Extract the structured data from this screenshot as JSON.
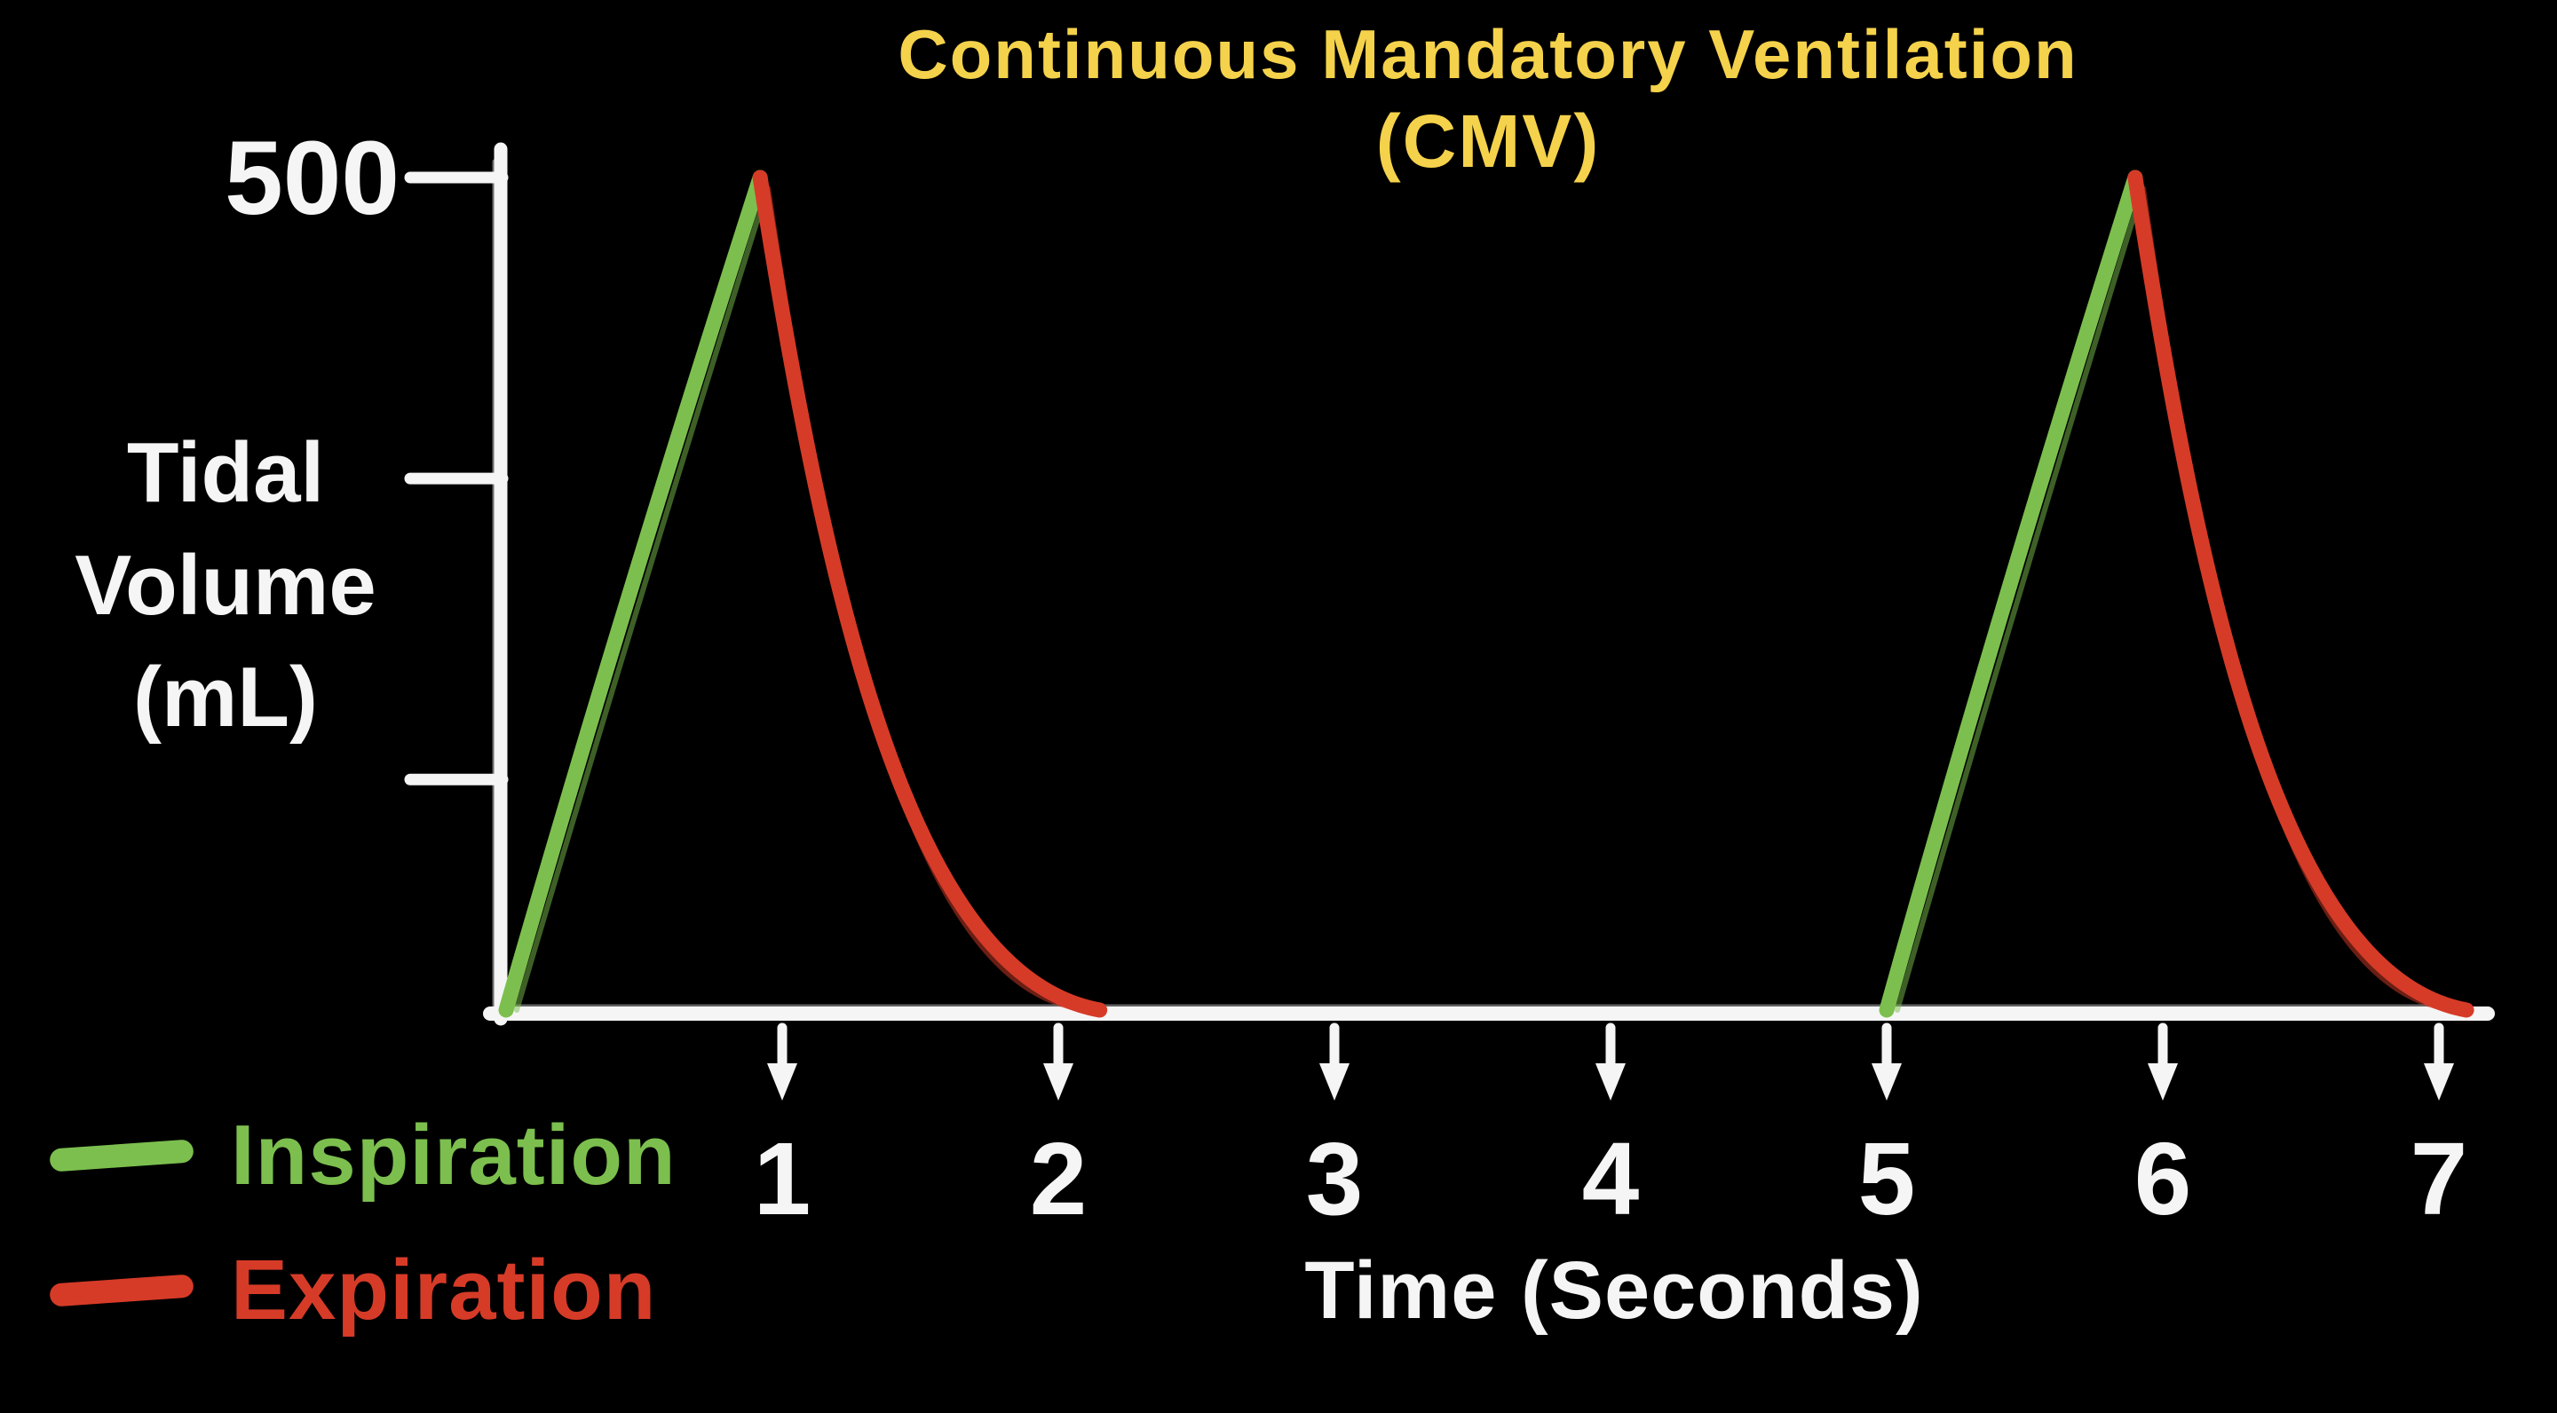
{
  "title": {
    "line1": "Continuous Mandatory Ventilation",
    "line2": "(CMV)"
  },
  "y_axis": {
    "label_lines": [
      "Tidal",
      "Volume",
      "(mL)"
    ],
    "max_label": "500"
  },
  "x_axis": {
    "label": "Time (Seconds)"
  },
  "legend": [
    {
      "label": "Inspiration",
      "color": "#7cbf4e"
    },
    {
      "label": "Expiration",
      "color": "#d63b28"
    }
  ],
  "colors": {
    "background": "#000000",
    "axis": "#f5f5f5",
    "text": "#f5f5f5",
    "title": "#f5d24b",
    "inspiration": "#7cbf4e",
    "expiration": "#d63b28"
  },
  "chart_data": {
    "type": "line",
    "title": "Continuous Mandatory Ventilation (CMV)",
    "xlabel": "Time (Seconds)",
    "ylabel": "Tidal Volume (mL)",
    "xlim": [
      0,
      7.3
    ],
    "ylim": [
      0,
      500
    ],
    "x_ticks": [
      1,
      2,
      3,
      4,
      5,
      6,
      7
    ],
    "y_ticks": [
      500,
      320,
      140
    ],
    "y_tick_labels": [
      {
        "value": 500,
        "label": "500"
      }
    ],
    "grid": false,
    "legend_position": "bottom-left",
    "peak_tidal_volume_ml": 500,
    "breaths": [
      {
        "inspiration_start_s": 0,
        "peak_s": 0.92,
        "expiration_end_s": 2.15,
        "peak_ml": 500
      },
      {
        "inspiration_start_s": 5.0,
        "peak_s": 5.9,
        "expiration_end_s": 7.1,
        "peak_ml": 500
      }
    ],
    "series": [
      {
        "name": "Inspiration",
        "color": "#7cbf4e",
        "segments": [
          [
            [
              0,
              0
            ],
            [
              0.92,
              500
            ]
          ],
          [
            [
              5.0,
              0
            ],
            [
              5.9,
              500
            ]
          ]
        ]
      },
      {
        "name": "Expiration",
        "color": "#d63b28",
        "shape": "exponential-decay",
        "segments": [
          [
            [
              0.92,
              500
            ],
            [
              2.15,
              0
            ]
          ],
          [
            [
              5.9,
              500
            ],
            [
              7.1,
              0
            ]
          ]
        ]
      }
    ]
  }
}
